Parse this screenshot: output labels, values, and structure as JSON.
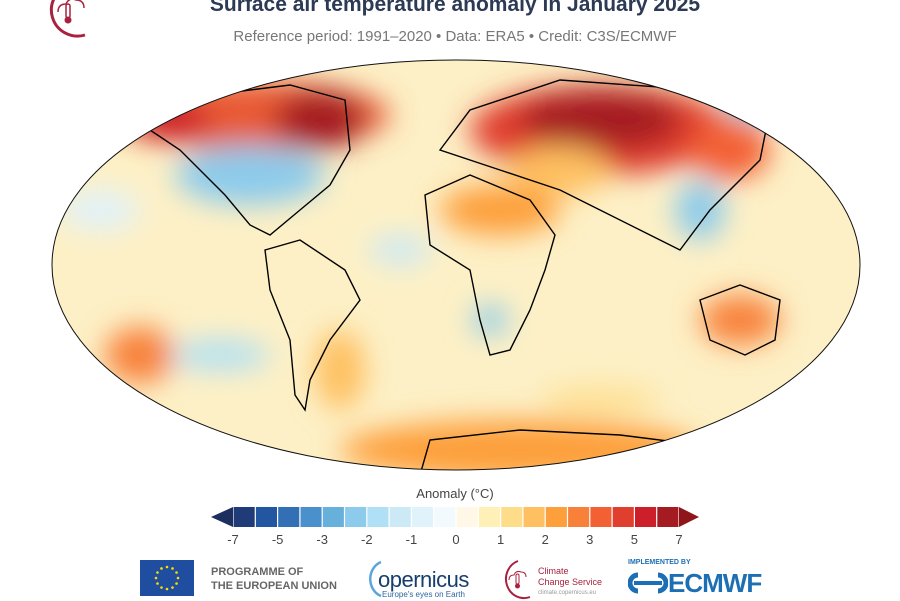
{
  "header": {
    "title": "Surface air temperature anomaly in January 2025",
    "subtitle": "Reference period: 1991–2020 • Data: ERA5 • Credit: C3S/ECMWF"
  },
  "map": {
    "projection": "Robinson",
    "variable": "Surface air temperature anomaly"
  },
  "colorbar": {
    "title": "Anomaly (°C)",
    "ticks": [
      "-7",
      "-5",
      "-3",
      "-2",
      "-1",
      "0",
      "1",
      "2",
      "3",
      "5",
      "7"
    ],
    "colors": [
      "#1f3c78",
      "#2356a0",
      "#326fb4",
      "#4a90cc",
      "#68b0dc",
      "#8ccbeb",
      "#b0e0f5",
      "#cce9f6",
      "#e0f2fa",
      "#f3fafd",
      "#fff8e6",
      "#fff0b8",
      "#fedd8a",
      "#fec060",
      "#fd9f3b",
      "#f8813a",
      "#f36034",
      "#e03e2e",
      "#cc1f2a",
      "#a51b22"
    ],
    "under_color": "#1c2f5e",
    "over_color": "#8e1519"
  },
  "footer": {
    "eu_line1": "PROGRAMME OF",
    "eu_line2": "THE EUROPEAN UNION",
    "copernicus": "opernicus",
    "copernicus_tagline": "Europe's eyes on Earth",
    "c3s_line1": "Climate",
    "c3s_line2": "Change Service",
    "c3s_url": "climate.copernicus.eu",
    "implemented_by": "IMPLEMENTED BY",
    "ecmwf": "ECMWF"
  }
}
